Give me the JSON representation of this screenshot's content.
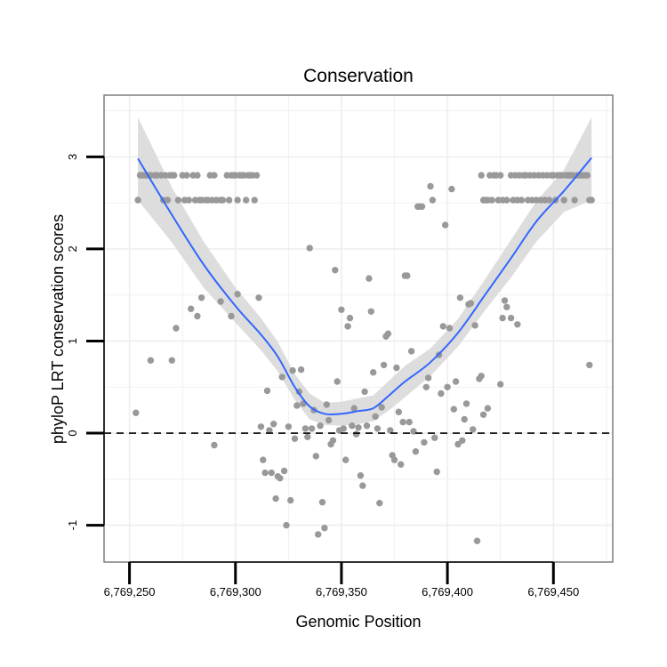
{
  "chart_data": {
    "type": "scatter",
    "title": "Conservation",
    "xlabel": "Genomic Position",
    "ylabel": "phyloP LRT conservation scores",
    "xlim": [
      6769238,
      6769478
    ],
    "ylim": [
      -1.4,
      3.67
    ],
    "xticks": [
      6769250,
      6769300,
      6769350,
      6769400,
      6769450
    ],
    "xtick_labels": [
      "6,769,250",
      "6,769,300",
      "6,769,350",
      "6,769,400",
      "6,769,450"
    ],
    "yticks": [
      -1,
      0,
      1,
      2,
      3
    ],
    "ytick_labels": [
      "-1",
      "0",
      "1",
      "2",
      "3"
    ],
    "grid": true,
    "reference_line": {
      "y": 0,
      "style": "dashed"
    },
    "colors": {
      "points": "#999999",
      "smooth": "#3366ff",
      "ribbon": "#d9d9d9",
      "panel_border": "#7f7f7f",
      "grid": "#eeeeee"
    },
    "series": [
      {
        "kind": "points",
        "points": [
          [
            6769254,
            2.53
          ],
          [
            6769255,
            2.8
          ],
          [
            6769256,
            2.8
          ],
          [
            6769257,
            2.8
          ],
          [
            6769258,
            2.8
          ],
          [
            6769259,
            2.8
          ],
          [
            6769260,
            2.8
          ],
          [
            6769262,
            2.8
          ],
          [
            6769263,
            2.8
          ],
          [
            6769265,
            2.8
          ],
          [
            6769266,
            2.53
          ],
          [
            6769267,
            2.8
          ],
          [
            6769268,
            2.53
          ],
          [
            6769269,
            2.8
          ],
          [
            6769270,
            2.8
          ],
          [
            6769271,
            2.8
          ],
          [
            6769273,
            2.53
          ],
          [
            6769275,
            2.8
          ],
          [
            6769276,
            2.53
          ],
          [
            6769277,
            2.8
          ],
          [
            6769278,
            2.53
          ],
          [
            6769280,
            2.8
          ],
          [
            6769281,
            2.53
          ],
          [
            6769282,
            2.8
          ],
          [
            6769283,
            2.53
          ],
          [
            6769284,
            2.53
          ],
          [
            6769286,
            2.53
          ],
          [
            6769287,
            2.53
          ],
          [
            6769288,
            2.8
          ],
          [
            6769289,
            2.53
          ],
          [
            6769290,
            2.8
          ],
          [
            6769291,
            2.53
          ],
          [
            6769293,
            2.53
          ],
          [
            6769294,
            2.53
          ],
          [
            6769296,
            2.8
          ],
          [
            6769297,
            2.53
          ],
          [
            6769298,
            2.8
          ],
          [
            6769299,
            2.8
          ],
          [
            6769300,
            2.8
          ],
          [
            6769301,
            2.53
          ],
          [
            6769302,
            2.8
          ],
          [
            6769303,
            2.8
          ],
          [
            6769304,
            2.8
          ],
          [
            6769305,
            2.53
          ],
          [
            6769306,
            2.8
          ],
          [
            6769307,
            2.8
          ],
          [
            6769308,
            2.8
          ],
          [
            6769309,
            2.53
          ],
          [
            6769310,
            2.8
          ],
          [
            6769253,
            0.22
          ],
          [
            6769260,
            0.79
          ],
          [
            6769270,
            0.79
          ],
          [
            6769272,
            1.14
          ],
          [
            6769279,
            1.35
          ],
          [
            6769282,
            1.27
          ],
          [
            6769284,
            1.47
          ],
          [
            6769290,
            -0.13
          ],
          [
            6769293,
            1.43
          ],
          [
            6769298,
            1.27
          ],
          [
            6769301,
            1.51
          ],
          [
            6769311,
            1.47
          ],
          [
            6769312,
            0.07
          ],
          [
            6769313,
            -0.29
          ],
          [
            6769314,
            -0.43
          ],
          [
            6769315,
            0.46
          ],
          [
            6769316,
            0.03
          ],
          [
            6769317,
            -0.43
          ],
          [
            6769318,
            0.1
          ],
          [
            6769319,
            -0.71
          ],
          [
            6769320,
            -0.47
          ],
          [
            6769321,
            -0.49
          ],
          [
            6769322,
            0.61
          ],
          [
            6769323,
            -0.41
          ],
          [
            6769324,
            -1.0
          ],
          [
            6769325,
            0.07
          ],
          [
            6769326,
            -0.73
          ],
          [
            6769327,
            0.68
          ],
          [
            6769328,
            -0.06
          ],
          [
            6769329,
            0.3
          ],
          [
            6769330,
            0.45
          ],
          [
            6769331,
            0.69
          ],
          [
            6769332,
            0.32
          ],
          [
            6769333,
            0.05
          ],
          [
            6769334,
            -0.04
          ],
          [
            6769335,
            2.01
          ],
          [
            6769336,
            0.05
          ],
          [
            6769337,
            0.25
          ],
          [
            6769338,
            -0.25
          ],
          [
            6769339,
            -1.1
          ],
          [
            6769340,
            0.08
          ],
          [
            6769341,
            -0.75
          ],
          [
            6769342,
            -1.03
          ],
          [
            6769343,
            0.31
          ],
          [
            6769344,
            0.14
          ],
          [
            6769345,
            -0.12
          ],
          [
            6769346,
            -0.08
          ],
          [
            6769347,
            1.77
          ],
          [
            6769348,
            0.56
          ],
          [
            6769349,
            0.03
          ],
          [
            6769350,
            1.34
          ],
          [
            6769351,
            0.05
          ],
          [
            6769352,
            -0.29
          ],
          [
            6769353,
            1.16
          ],
          [
            6769354,
            1.25
          ],
          [
            6769355,
            0.08
          ],
          [
            6769356,
            0.27
          ],
          [
            6769357,
            -0.01
          ],
          [
            6769358,
            0.06
          ],
          [
            6769359,
            -0.46
          ],
          [
            6769360,
            -0.57
          ],
          [
            6769361,
            0.45
          ],
          [
            6769362,
            0.08
          ],
          [
            6769363,
            1.68
          ],
          [
            6769364,
            1.32
          ],
          [
            6769365,
            0.66
          ],
          [
            6769366,
            0.18
          ],
          [
            6769367,
            0.05
          ],
          [
            6769368,
            -0.76
          ],
          [
            6769369,
            0.28
          ],
          [
            6769370,
            0.74
          ],
          [
            6769371,
            1.05
          ],
          [
            6769372,
            1.08
          ],
          [
            6769373,
            0.03
          ],
          [
            6769374,
            -0.24
          ],
          [
            6769375,
            -0.29
          ],
          [
            6769376,
            0.71
          ],
          [
            6769377,
            0.23
          ],
          [
            6769378,
            -0.34
          ],
          [
            6769379,
            0.12
          ],
          [
            6769380,
            1.71
          ],
          [
            6769381,
            1.71
          ],
          [
            6769382,
            0.12
          ],
          [
            6769383,
            0.89
          ],
          [
            6769384,
            0.02
          ],
          [
            6769385,
            -0.2
          ],
          [
            6769386,
            2.46
          ],
          [
            6769387,
            2.46
          ],
          [
            6769388,
            2.46
          ],
          [
            6769389,
            -0.1
          ],
          [
            6769390,
            0.5
          ],
          [
            6769391,
            0.6
          ],
          [
            6769392,
            2.68
          ],
          [
            6769393,
            2.53
          ],
          [
            6769394,
            -0.05
          ],
          [
            6769395,
            -0.42
          ],
          [
            6769396,
            0.85
          ],
          [
            6769397,
            0.43
          ],
          [
            6769398,
            1.16
          ],
          [
            6769399,
            2.26
          ],
          [
            6769400,
            0.5
          ],
          [
            6769401,
            1.14
          ],
          [
            6769402,
            2.65
          ],
          [
            6769403,
            0.26
          ],
          [
            6769404,
            0.56
          ],
          [
            6769405,
            -0.12
          ],
          [
            6769406,
            1.47
          ],
          [
            6769407,
            -0.08
          ],
          [
            6769408,
            0.15
          ],
          [
            6769409,
            0.32
          ],
          [
            6769410,
            1.4
          ],
          [
            6769411,
            1.41
          ],
          [
            6769412,
            0.04
          ],
          [
            6769413,
            1.17
          ],
          [
            6769414,
            -1.17
          ],
          [
            6769415,
            0.59
          ],
          [
            6769416,
            0.62
          ],
          [
            6769417,
            0.2
          ],
          [
            6769419,
            0.27
          ],
          [
            6769425,
            0.53
          ],
          [
            6769426,
            1.25
          ],
          [
            6769427,
            1.44
          ],
          [
            6769428,
            1.37
          ],
          [
            6769430,
            1.25
          ],
          [
            6769433,
            1.18
          ],
          [
            6769467,
            0.74
          ],
          [
            6769416,
            2.8
          ],
          [
            6769417,
            2.53
          ],
          [
            6769418,
            2.53
          ],
          [
            6769419,
            2.53
          ],
          [
            6769420,
            2.8
          ],
          [
            6769421,
            2.53
          ],
          [
            6769422,
            2.8
          ],
          [
            6769423,
            2.8
          ],
          [
            6769424,
            2.53
          ],
          [
            6769425,
            2.8
          ],
          [
            6769426,
            2.53
          ],
          [
            6769428,
            2.53
          ],
          [
            6769430,
            2.8
          ],
          [
            6769431,
            2.53
          ],
          [
            6769432,
            2.8
          ],
          [
            6769433,
            2.53
          ],
          [
            6769434,
            2.8
          ],
          [
            6769435,
            2.53
          ],
          [
            6769436,
            2.8
          ],
          [
            6769437,
            2.8
          ],
          [
            6769438,
            2.53
          ],
          [
            6769439,
            2.8
          ],
          [
            6769440,
            2.53
          ],
          [
            6769441,
            2.8
          ],
          [
            6769442,
            2.53
          ],
          [
            6769443,
            2.8
          ],
          [
            6769444,
            2.53
          ],
          [
            6769445,
            2.8
          ],
          [
            6769446,
            2.53
          ],
          [
            6769447,
            2.8
          ],
          [
            6769448,
            2.53
          ],
          [
            6769449,
            2.8
          ],
          [
            6769450,
            2.8
          ],
          [
            6769451,
            2.53
          ],
          [
            6769452,
            2.8
          ],
          [
            6769453,
            2.8
          ],
          [
            6769454,
            2.8
          ],
          [
            6769455,
            2.53
          ],
          [
            6769456,
            2.8
          ],
          [
            6769457,
            2.8
          ],
          [
            6769458,
            2.8
          ],
          [
            6769459,
            2.8
          ],
          [
            6769460,
            2.53
          ],
          [
            6769461,
            2.8
          ],
          [
            6769462,
            2.8
          ],
          [
            6769463,
            2.8
          ],
          [
            6769464,
            2.8
          ],
          [
            6769465,
            2.8
          ],
          [
            6769466,
            2.8
          ],
          [
            6769467,
            2.53
          ],
          [
            6769468,
            2.53
          ]
        ]
      },
      {
        "kind": "smooth",
        "x": [
          6769254,
          6769270,
          6769285,
          6769300,
          6769312,
          6769320,
          6769328,
          6769335,
          6769342,
          6769350,
          6769358,
          6769365,
          6769372,
          6769380,
          6769392,
          6769405,
          6769418,
          6769430,
          6769442,
          6769455,
          6769468
        ],
        "y": [
          2.98,
          2.37,
          1.83,
          1.38,
          1.07,
          0.83,
          0.5,
          0.29,
          0.21,
          0.21,
          0.24,
          0.27,
          0.4,
          0.56,
          0.77,
          1.09,
          1.51,
          1.9,
          2.3,
          2.63,
          2.99
        ],
        "ymin": [
          2.53,
          2.07,
          1.58,
          1.2,
          0.9,
          0.67,
          0.36,
          0.15,
          0.09,
          0.08,
          0.1,
          0.13,
          0.24,
          0.39,
          0.62,
          0.94,
          1.34,
          1.69,
          2.08,
          2.4,
          2.53
        ],
        "ymax": [
          3.43,
          2.67,
          2.08,
          1.58,
          1.25,
          0.99,
          0.64,
          0.43,
          0.33,
          0.34,
          0.38,
          0.41,
          0.56,
          0.73,
          0.92,
          1.24,
          1.68,
          2.1,
          2.52,
          2.86,
          3.43
        ]
      }
    ]
  }
}
